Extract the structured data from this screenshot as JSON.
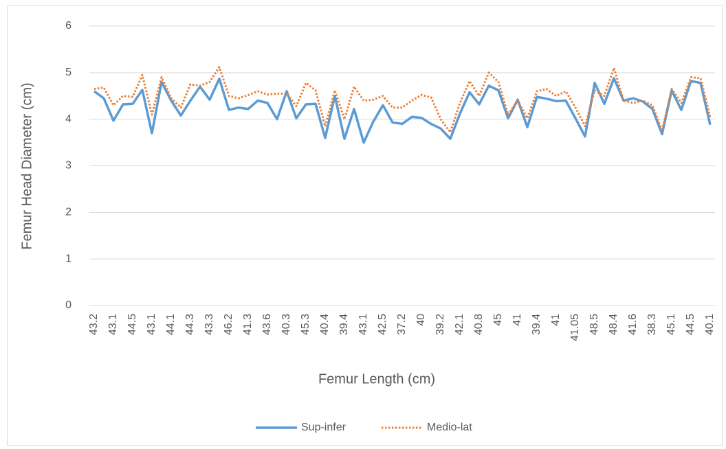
{
  "chart_data": {
    "type": "line",
    "x_label": "Femur Length (cm)",
    "y_label": "Femur Head Diameter (cm)",
    "categories": [
      "43.2",
      null,
      "43.1",
      null,
      "44.5",
      null,
      "43.1",
      null,
      "44.1",
      null,
      "44.3",
      null,
      "43.3",
      null,
      "46.2",
      null,
      "41.3",
      null,
      "43.6",
      null,
      "40.3",
      null,
      "45.3",
      null,
      "40.4",
      null,
      "39.4",
      null,
      "43.1",
      null,
      "42.5",
      null,
      "37.2",
      null,
      "40",
      null,
      "39.2",
      null,
      "42.1",
      null,
      "40.8",
      null,
      "45",
      null,
      "41",
      null,
      "39.4",
      null,
      "41",
      null,
      "41.05",
      null,
      "48.5",
      null,
      "48.4",
      null,
      "41.6",
      null,
      "38.3",
      null,
      "45.1",
      null,
      "44.5",
      null,
      "40.1"
    ],
    "series": [
      {
        "name": "Sup-infer",
        "color": "#5b9bd5",
        "style": "solid",
        "values": [
          4.6,
          4.45,
          3.97,
          4.32,
          4.33,
          4.63,
          3.7,
          4.8,
          4.4,
          4.08,
          4.4,
          4.7,
          4.42,
          4.87,
          4.2,
          4.25,
          4.22,
          4.4,
          4.35,
          4.0,
          4.6,
          4.02,
          4.32,
          4.33,
          3.6,
          4.5,
          3.58,
          4.22,
          3.5,
          3.95,
          4.3,
          3.93,
          3.9,
          4.05,
          4.03,
          3.9,
          3.8,
          3.58,
          4.12,
          4.58,
          4.32,
          4.72,
          4.62,
          4.02,
          4.42,
          3.83,
          4.48,
          4.44,
          4.39,
          4.4,
          4.02,
          3.63,
          4.78,
          4.33,
          4.88,
          4.4,
          4.45,
          4.38,
          4.22,
          3.68,
          4.62,
          4.2,
          4.82,
          4.78,
          3.88
        ]
      },
      {
        "name": "Medio-lat",
        "color": "#ed7d31",
        "style": "dotted",
        "values": [
          4.65,
          4.68,
          4.3,
          4.5,
          4.48,
          4.95,
          4.1,
          4.9,
          4.45,
          4.25,
          4.75,
          4.72,
          4.8,
          5.12,
          4.5,
          4.45,
          4.52,
          4.6,
          4.53,
          4.55,
          4.55,
          4.28,
          4.78,
          4.62,
          3.85,
          4.62,
          4.0,
          4.7,
          4.4,
          4.42,
          4.5,
          4.25,
          4.25,
          4.4,
          4.52,
          4.47,
          4.0,
          3.72,
          4.35,
          4.82,
          4.5,
          5.0,
          4.8,
          4.1,
          4.4,
          4.02,
          4.6,
          4.65,
          4.5,
          4.6,
          4.25,
          3.85,
          4.62,
          4.5,
          5.1,
          4.4,
          4.35,
          4.4,
          4.3,
          3.75,
          4.65,
          4.35,
          4.9,
          4.88,
          4.05
        ]
      }
    ],
    "ylim": [
      0,
      6
    ],
    "yticks": [
      0,
      1,
      2,
      3,
      4,
      5,
      6
    ],
    "grid": true,
    "legend": "bottom"
  }
}
